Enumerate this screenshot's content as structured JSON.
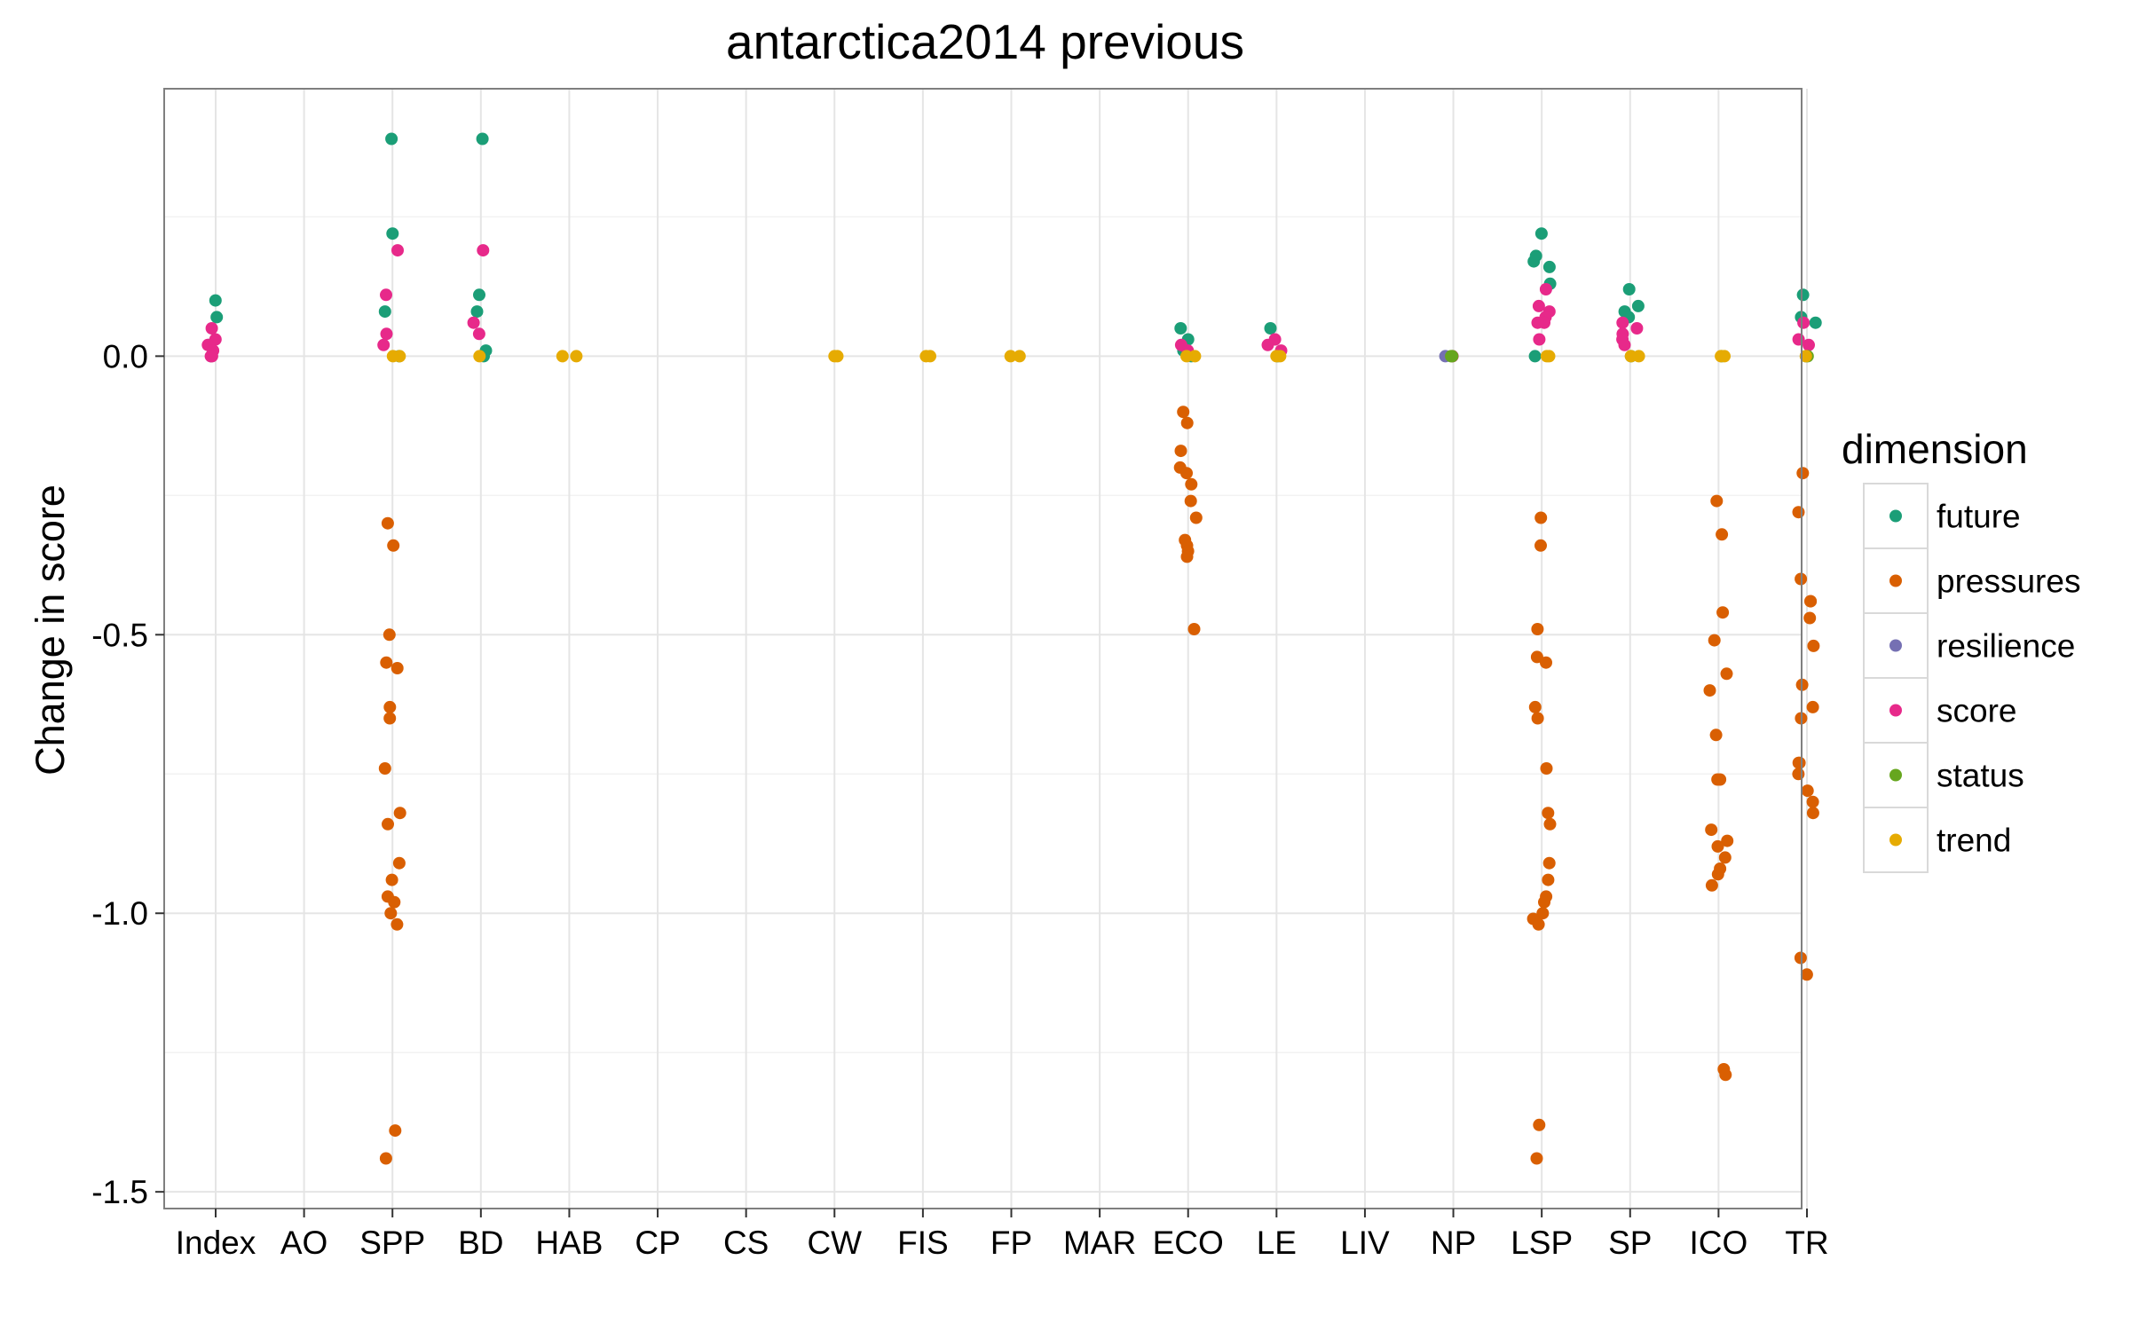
{
  "chart_data": {
    "type": "scatter",
    "title": "antarctica2014 previous",
    "xlabel": "",
    "ylabel": "Change in score",
    "ylim": [
      -1.53,
      0.48
    ],
    "yticks": [
      0.0,
      -0.5,
      -1.0,
      -1.5
    ],
    "ytick_labels": [
      "0.0",
      "-0.5",
      "-1.0",
      "-1.5"
    ],
    "grid": true,
    "legend": {
      "title": "dimension",
      "placement": "right"
    },
    "categories": [
      "Index",
      "AO",
      "SPP",
      "BD",
      "HAB",
      "CP",
      "CS",
      "CW",
      "FIS",
      "FP",
      "MAR",
      "ECO",
      "LE",
      "LIV",
      "NP",
      "LSP",
      "SP",
      "ICO",
      "TR"
    ],
    "series": [
      {
        "name": "future",
        "color": "#1b9e77",
        "points": [
          [
            "Index",
            0.1
          ],
          [
            "Index",
            0.07
          ],
          [
            "Index",
            0.02
          ],
          [
            "Index",
            0.0
          ],
          [
            "SPP",
            0.39
          ],
          [
            "SPP",
            0.22
          ],
          [
            "SPP",
            0.08
          ],
          [
            "SPP",
            0.0
          ],
          [
            "BD",
            0.39
          ],
          [
            "BD",
            0.11
          ],
          [
            "BD",
            0.08
          ],
          [
            "BD",
            0.01
          ],
          [
            "BD",
            0.0
          ],
          [
            "ECO",
            0.05
          ],
          [
            "ECO",
            0.03
          ],
          [
            "ECO",
            0.01
          ],
          [
            "ECO",
            0.0
          ],
          [
            "LE",
            0.05
          ],
          [
            "LE",
            0.0
          ],
          [
            "LSP",
            0.22
          ],
          [
            "LSP",
            0.18
          ],
          [
            "LSP",
            0.17
          ],
          [
            "LSP",
            0.16
          ],
          [
            "LSP",
            0.13
          ],
          [
            "LSP",
            0.0
          ],
          [
            "SP",
            0.12
          ],
          [
            "SP",
            0.09
          ],
          [
            "SP",
            0.08
          ],
          [
            "SP",
            0.07
          ],
          [
            "SP",
            0.0
          ],
          [
            "ICO",
            0.0
          ],
          [
            "TR",
            0.11
          ],
          [
            "TR",
            0.07
          ],
          [
            "TR",
            0.06
          ],
          [
            "TR",
            0.0
          ]
        ]
      },
      {
        "name": "pressures",
        "color": "#d95f02",
        "points": [
          [
            "SPP",
            -0.3
          ],
          [
            "SPP",
            -0.34
          ],
          [
            "SPP",
            -0.5
          ],
          [
            "SPP",
            -0.55
          ],
          [
            "SPP",
            -0.56
          ],
          [
            "SPP",
            -0.63
          ],
          [
            "SPP",
            -0.65
          ],
          [
            "SPP",
            -0.74
          ],
          [
            "SPP",
            -0.82
          ],
          [
            "SPP",
            -0.84
          ],
          [
            "SPP",
            -0.91
          ],
          [
            "SPP",
            -0.94
          ],
          [
            "SPP",
            -0.97
          ],
          [
            "SPP",
            -0.98
          ],
          [
            "SPP",
            -1.0
          ],
          [
            "SPP",
            -1.02
          ],
          [
            "SPP",
            -1.39
          ],
          [
            "SPP",
            -1.44
          ],
          [
            "ECO",
            -0.1
          ],
          [
            "ECO",
            -0.12
          ],
          [
            "ECO",
            -0.17
          ],
          [
            "ECO",
            -0.2
          ],
          [
            "ECO",
            -0.21
          ],
          [
            "ECO",
            -0.23
          ],
          [
            "ECO",
            -0.26
          ],
          [
            "ECO",
            -0.29
          ],
          [
            "ECO",
            -0.33
          ],
          [
            "ECO",
            -0.34
          ],
          [
            "ECO",
            -0.35
          ],
          [
            "ECO",
            -0.36
          ],
          [
            "ECO",
            -0.49
          ],
          [
            "LSP",
            -0.29
          ],
          [
            "LSP",
            -0.34
          ],
          [
            "LSP",
            -0.49
          ],
          [
            "LSP",
            -0.54
          ],
          [
            "LSP",
            -0.55
          ],
          [
            "LSP",
            -0.63
          ],
          [
            "LSP",
            -0.65
          ],
          [
            "LSP",
            -0.74
          ],
          [
            "LSP",
            -0.82
          ],
          [
            "LSP",
            -0.84
          ],
          [
            "LSP",
            -0.91
          ],
          [
            "LSP",
            -0.94
          ],
          [
            "LSP",
            -0.97
          ],
          [
            "LSP",
            -0.98
          ],
          [
            "LSP",
            -1.0
          ],
          [
            "LSP",
            -1.01
          ],
          [
            "LSP",
            -1.02
          ],
          [
            "LSP",
            -1.38
          ],
          [
            "LSP",
            -1.44
          ],
          [
            "ICO",
            -0.26
          ],
          [
            "ICO",
            -0.32
          ],
          [
            "ICO",
            -0.46
          ],
          [
            "ICO",
            -0.51
          ],
          [
            "ICO",
            -0.57
          ],
          [
            "ICO",
            -0.6
          ],
          [
            "ICO",
            -0.68
          ],
          [
            "ICO",
            -0.76
          ],
          [
            "ICO",
            -0.76
          ],
          [
            "ICO",
            -0.85
          ],
          [
            "ICO",
            -0.87
          ],
          [
            "ICO",
            -0.88
          ],
          [
            "ICO",
            -0.9
          ],
          [
            "ICO",
            -0.92
          ],
          [
            "ICO",
            -0.93
          ],
          [
            "ICO",
            -0.95
          ],
          [
            "ICO",
            -1.28
          ],
          [
            "ICO",
            -1.29
          ],
          [
            "TR",
            -0.21
          ],
          [
            "TR",
            -0.28
          ],
          [
            "TR",
            -0.4
          ],
          [
            "TR",
            -0.44
          ],
          [
            "TR",
            -0.44
          ],
          [
            "TR",
            -0.47
          ],
          [
            "TR",
            -0.52
          ],
          [
            "TR",
            -0.59
          ],
          [
            "TR",
            -0.63
          ],
          [
            "TR",
            -0.65
          ],
          [
            "TR",
            -0.73
          ],
          [
            "TR",
            -0.73
          ],
          [
            "TR",
            -0.75
          ],
          [
            "TR",
            -0.78
          ],
          [
            "TR",
            -0.8
          ],
          [
            "TR",
            -0.82
          ],
          [
            "TR",
            -1.08
          ],
          [
            "TR",
            -1.11
          ]
        ]
      },
      {
        "name": "resilience",
        "color": "#7570b3",
        "points": [
          [
            "NP",
            0.0
          ]
        ]
      },
      {
        "name": "score",
        "color": "#e7298a",
        "points": [
          [
            "Index",
            0.05
          ],
          [
            "Index",
            0.03
          ],
          [
            "Index",
            0.02
          ],
          [
            "Index",
            0.01
          ],
          [
            "Index",
            0.0
          ],
          [
            "Index",
            0.0
          ],
          [
            "SPP",
            0.19
          ],
          [
            "SPP",
            0.11
          ],
          [
            "SPP",
            0.04
          ],
          [
            "SPP",
            0.02
          ],
          [
            "BD",
            0.19
          ],
          [
            "BD",
            0.06
          ],
          [
            "BD",
            0.04
          ],
          [
            "ECO",
            0.02
          ],
          [
            "ECO",
            0.01
          ],
          [
            "LE",
            0.03
          ],
          [
            "LE",
            0.02
          ],
          [
            "LE",
            0.01
          ],
          [
            "NP",
            0.0
          ],
          [
            "LSP",
            0.12
          ],
          [
            "LSP",
            0.09
          ],
          [
            "LSP",
            0.08
          ],
          [
            "LSP",
            0.07
          ],
          [
            "LSP",
            0.06
          ],
          [
            "LSP",
            0.06
          ],
          [
            "LSP",
            0.03
          ],
          [
            "SP",
            0.06
          ],
          [
            "SP",
            0.05
          ],
          [
            "SP",
            0.04
          ],
          [
            "SP",
            0.03
          ],
          [
            "SP",
            0.02
          ],
          [
            "TR",
            0.06
          ],
          [
            "TR",
            0.03
          ],
          [
            "TR",
            0.02
          ]
        ]
      },
      {
        "name": "status",
        "color": "#66a61e",
        "points": [
          [
            "NP",
            0.0
          ],
          [
            "NP",
            0.0
          ],
          [
            "TR",
            0.0
          ]
        ]
      },
      {
        "name": "trend",
        "color": "#e6ab02",
        "points": [
          [
            "SPP",
            0.0
          ],
          [
            "SPP",
            0.0
          ],
          [
            "BD",
            0.0
          ],
          [
            "HAB",
            0.0
          ],
          [
            "HAB",
            0.0
          ],
          [
            "CW",
            0.0
          ],
          [
            "CW",
            0.0
          ],
          [
            "FIS",
            0.0
          ],
          [
            "FIS",
            0.0
          ],
          [
            "FP",
            0.0
          ],
          [
            "FP",
            0.0
          ],
          [
            "ECO",
            0.0
          ],
          [
            "ECO",
            0.0
          ],
          [
            "LE",
            0.0
          ],
          [
            "LE",
            0.0
          ],
          [
            "LSP",
            0.0
          ],
          [
            "LSP",
            0.0
          ],
          [
            "SP",
            0.0
          ],
          [
            "SP",
            0.0
          ],
          [
            "ICO",
            0.0
          ],
          [
            "ICO",
            0.0
          ],
          [
            "TR",
            0.0
          ]
        ]
      }
    ]
  }
}
